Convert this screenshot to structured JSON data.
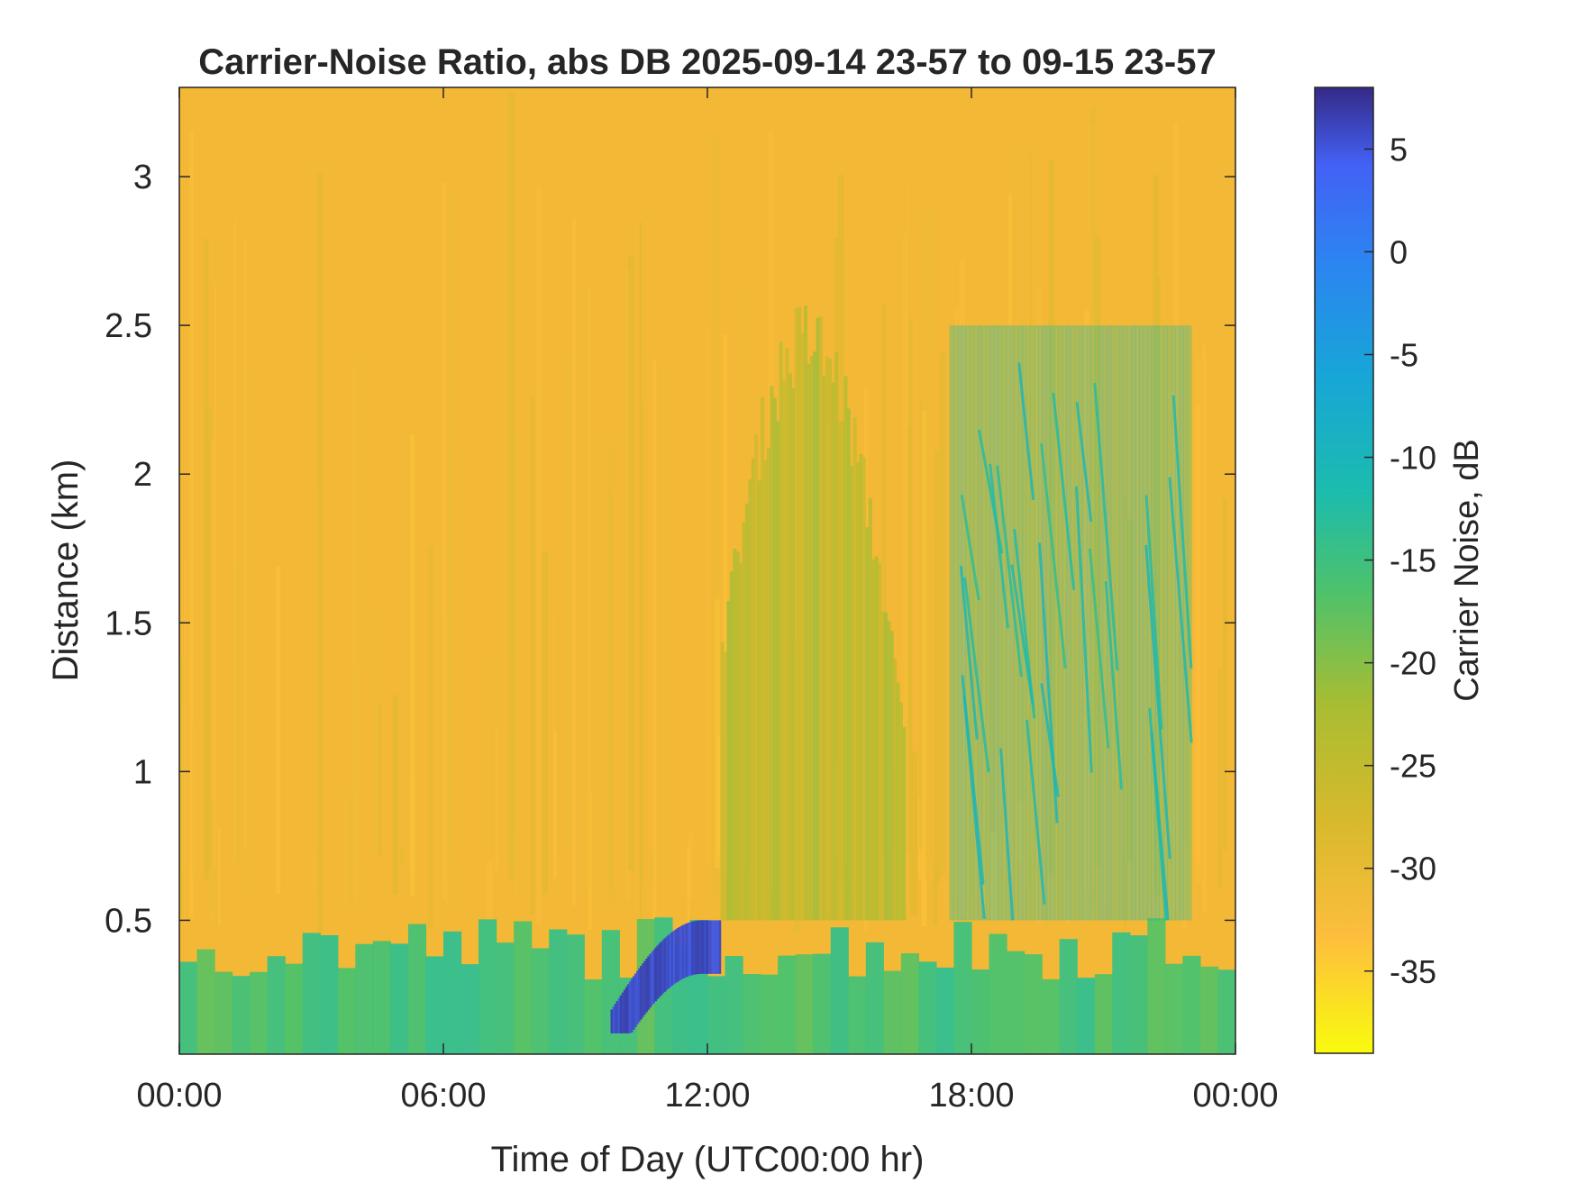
{
  "chart_data": {
    "type": "heatmap",
    "title": "Carrier-Noise Ratio, abs DB 2025-09-14 23-57 to 09-15 23-57",
    "xlabel": "Time of Day (UTC00:00 hr)",
    "ylabel": "Distance (km)",
    "colorbar_label": "Carrier Noise, dB",
    "colormap": "parula (reversed)",
    "x_range_hours": [
      0,
      24
    ],
    "y_range_km": [
      0.05,
      3.3
    ],
    "color_range_db": [
      -39,
      8
    ],
    "x_ticks": [
      {
        "value": 0,
        "label": "00:00"
      },
      {
        "value": 6,
        "label": "06:00"
      },
      {
        "value": 12,
        "label": "12:00"
      },
      {
        "value": 18,
        "label": "18:00"
      },
      {
        "value": 24,
        "label": "00:00"
      }
    ],
    "y_ticks": [
      {
        "value": 0.5,
        "label": "0.5"
      },
      {
        "value": 1,
        "label": "1"
      },
      {
        "value": 1.5,
        "label": "1.5"
      },
      {
        "value": 2,
        "label": "2"
      },
      {
        "value": 2.5,
        "label": "2.5"
      },
      {
        "value": 3,
        "label": "3"
      }
    ],
    "colorbar_ticks": [
      {
        "value": 5,
        "label": "5"
      },
      {
        "value": 0,
        "label": "0"
      },
      {
        "value": -5,
        "label": "-5"
      },
      {
        "value": -10,
        "label": "-10"
      },
      {
        "value": -15,
        "label": "-15"
      },
      {
        "value": -20,
        "label": "-20"
      },
      {
        "value": -25,
        "label": "-25"
      },
      {
        "value": -30,
        "label": "-30"
      },
      {
        "value": -35,
        "label": "-35"
      }
    ],
    "background_level_db": -31,
    "features": [
      {
        "description": "near-surface high-SNR layer",
        "time_h": [
          0,
          24
        ],
        "height_km": [
          0.05,
          0.45
        ],
        "level_db": -18
      },
      {
        "description": "strong return near late morning",
        "time_h": [
          9.8,
          12.3
        ],
        "height_km": [
          0.15,
          0.5
        ],
        "level_db": 4
      },
      {
        "description": "afternoon convective boundary layer",
        "time_h": [
          12.3,
          16.5
        ],
        "height_km": [
          0.5,
          2.6
        ],
        "level_db": -25
      },
      {
        "description": "evening streak region",
        "time_h": [
          17.5,
          23
        ],
        "height_km": [
          0.5,
          2.5
        ],
        "level_db": -15
      }
    ]
  }
}
